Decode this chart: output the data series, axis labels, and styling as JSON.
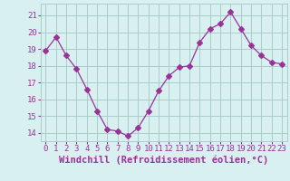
{
  "x": [
    0,
    1,
    2,
    3,
    4,
    5,
    6,
    7,
    8,
    9,
    10,
    11,
    12,
    13,
    14,
    15,
    16,
    17,
    18,
    19,
    20,
    21,
    22,
    23
  ],
  "y": [
    18.9,
    19.7,
    18.6,
    17.8,
    16.6,
    15.3,
    14.2,
    14.1,
    13.8,
    14.3,
    15.3,
    16.5,
    17.4,
    17.9,
    18.0,
    19.4,
    20.2,
    20.5,
    21.2,
    20.2,
    19.2,
    18.6,
    18.2,
    18.1
  ],
  "line_color": "#993399",
  "marker": "D",
  "marker_size": 3,
  "bg_color": "#d8f0f0",
  "grid_color": "#aacccc",
  "xlabel": "Windchill (Refroidissement éolien,°C)",
  "yticks": [
    14,
    15,
    16,
    17,
    18,
    19,
    20,
    21
  ],
  "ylim": [
    13.5,
    21.7
  ],
  "xlim": [
    -0.5,
    23.5
  ],
  "tick_color": "#993399",
  "tick_fontsize": 6.5,
  "label_fontsize": 7.5
}
